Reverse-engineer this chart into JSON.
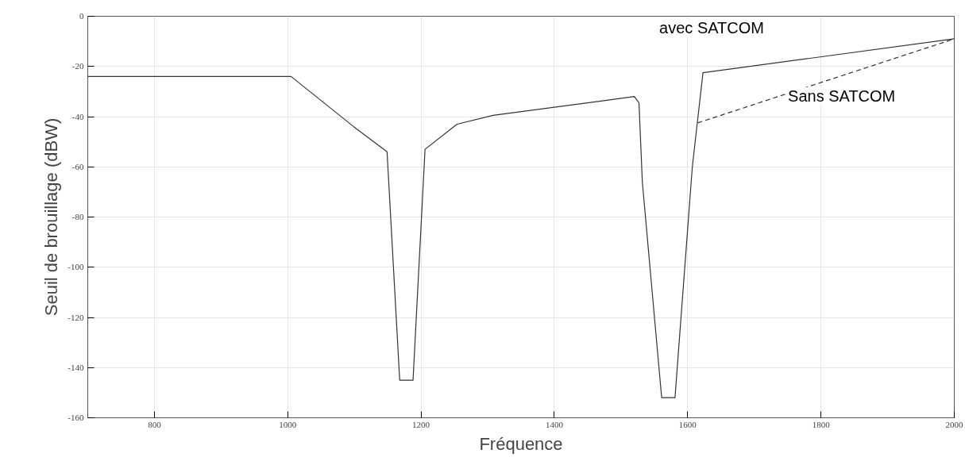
{
  "chart_data": {
    "type": "line",
    "xlabel": "Fréquence",
    "ylabel": "Seuil de brouillage (dBW)",
    "xlim": [
      700,
      2000
    ],
    "ylim": [
      -160,
      0
    ],
    "xticks": [
      800,
      1000,
      1200,
      1400,
      1600,
      1800,
      2000
    ],
    "yticks": [
      0,
      -20,
      -40,
      -60,
      -80,
      -100,
      -120,
      -140,
      -160
    ],
    "grid": true,
    "marker": "none",
    "series": [
      {
        "name": "avec SATCOM",
        "color": "#333333",
        "line_style": "solid",
        "x": [
          700,
          1005,
          1099,
          1149,
          1168,
          1188,
          1206,
          1254,
          1308,
          1520,
          1527,
          1532,
          1561,
          1581,
          1607,
          1623,
          2000
        ],
        "values": [
          -24,
          -24,
          -44,
          -54,
          -145,
          -145,
          -53,
          -43,
          -39.5,
          -32,
          -34.5,
          -66,
          -152,
          -152,
          -60,
          -22.5,
          -9
        ]
      },
      {
        "name": "Sans SATCOM",
        "color": "#333333",
        "line_style": "dashed",
        "x": [
          1615,
          2000
        ],
        "values": [
          -42.5,
          -9
        ]
      }
    ]
  }
}
